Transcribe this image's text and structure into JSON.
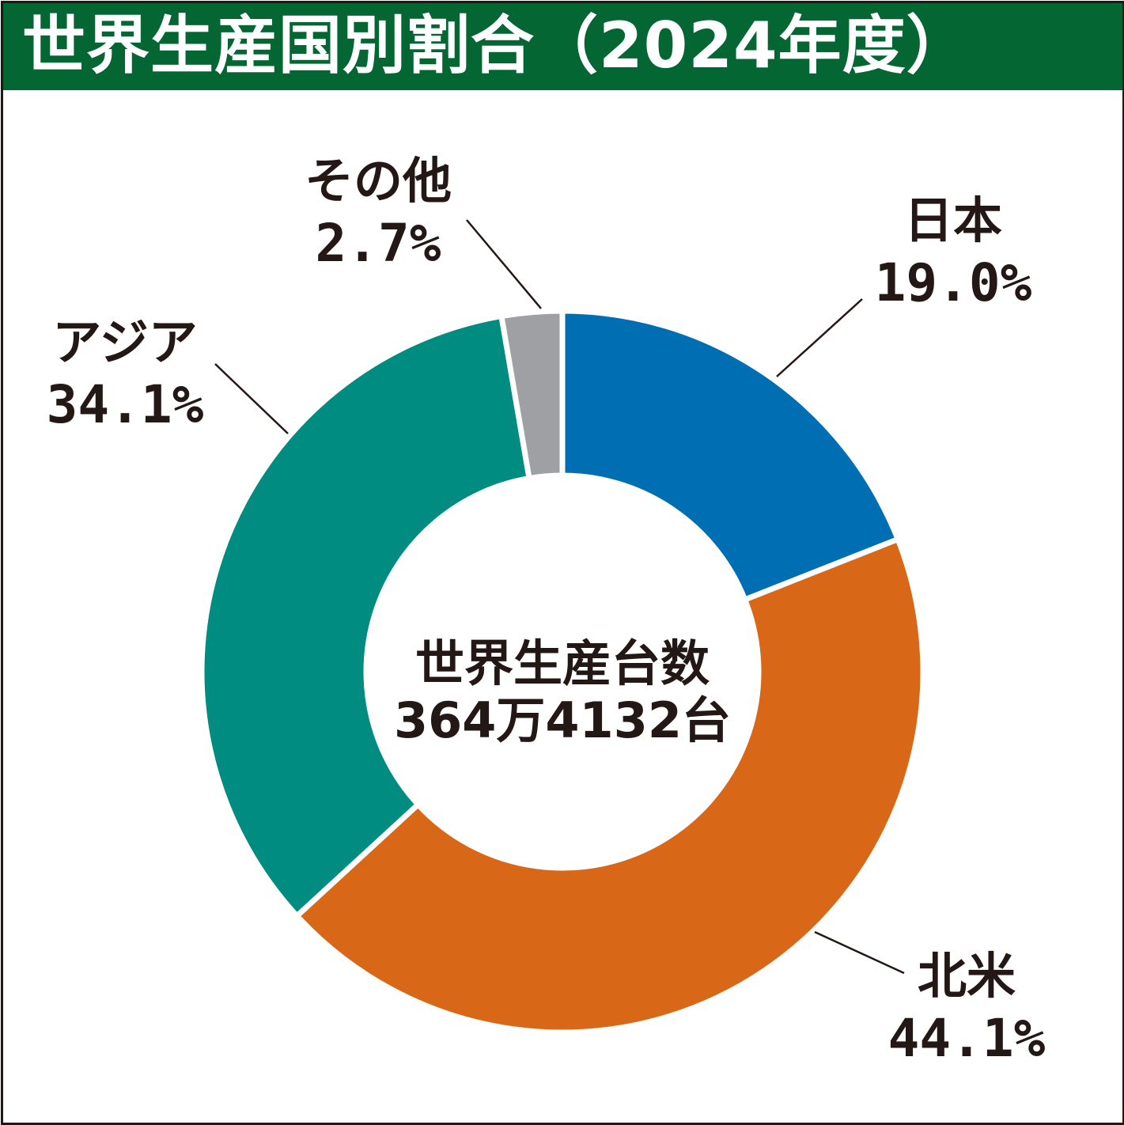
{
  "title": "世界生産国別割合（2024年度）",
  "colors": {
    "title_bg": "#046633",
    "title_text": "#ffffff",
    "label_text": "#231815",
    "leader_line": "#231815"
  },
  "chart_data": {
    "type": "pie",
    "title": "世界生産国別割合（2024年度）",
    "center_text": [
      "世界生産台数",
      "364万4132台"
    ],
    "slices": [
      {
        "label": "日本",
        "value": 19.0,
        "value_label": "19.0%",
        "color": "#006eb2"
      },
      {
        "label": "北米",
        "value": 44.1,
        "value_label": "44.1%",
        "color": "#d96718"
      },
      {
        "label": "アジア",
        "value": 34.1,
        "value_label": "34.1%",
        "color": "#008c80"
      },
      {
        "label": "その他",
        "value": 2.7,
        "value_label": "2.7%",
        "color": "#9fa0a4"
      }
    ],
    "legend": "none",
    "grid": false
  }
}
